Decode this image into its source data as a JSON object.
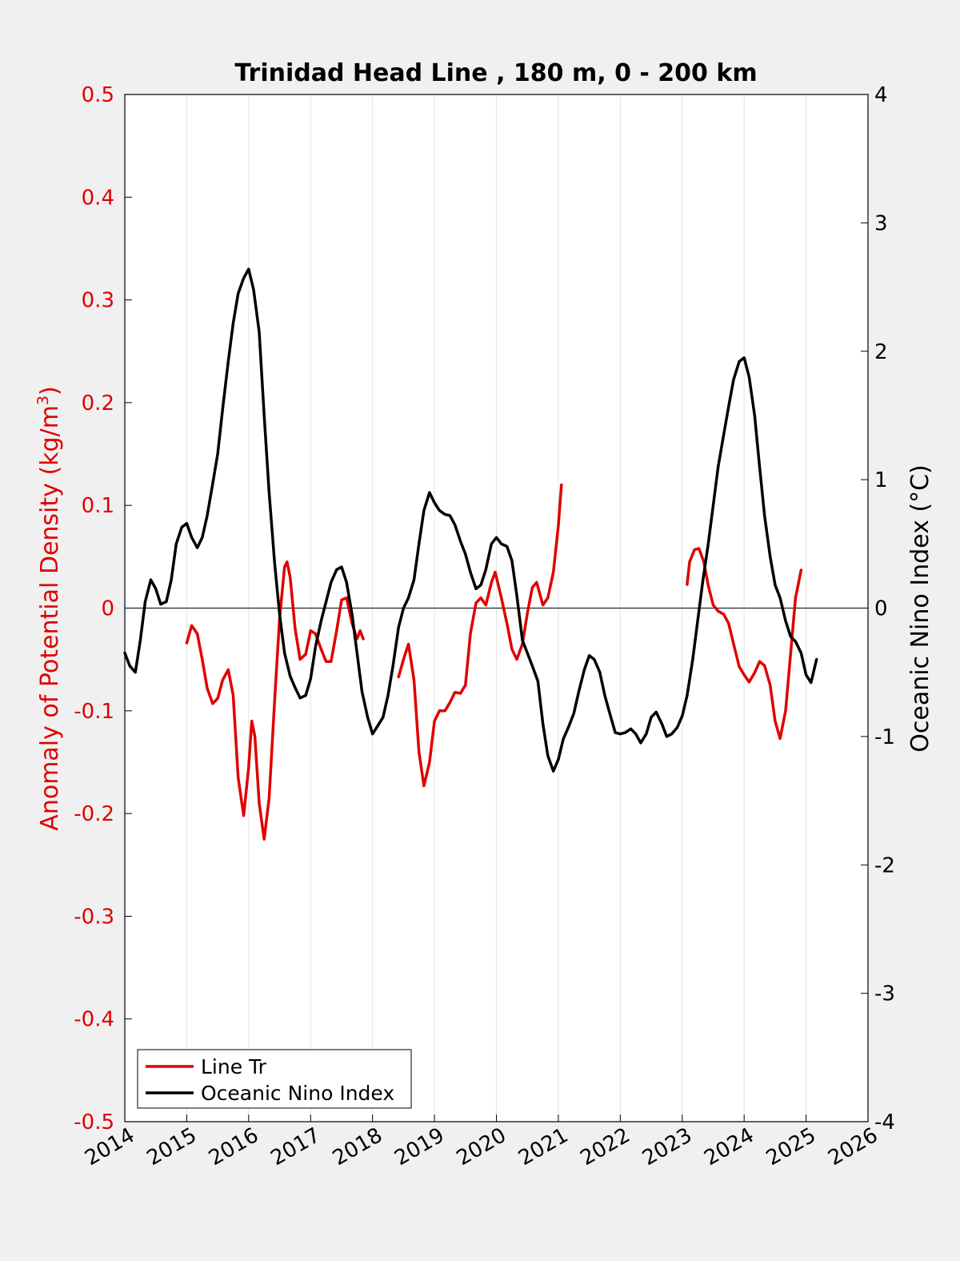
{
  "chart_data": {
    "type": "line",
    "title": "Trinidad Head Line , 180 m, 0 - 200 km",
    "ylabel_left_main": "Anomaly of Potential Density (kg/m",
    "ylabel_left_sup": "3",
    "ylabel_left_close": ")",
    "ylabel_right": "Oceanic Nino Index (°C)",
    "xlim": [
      2014,
      2026
    ],
    "ylim_left": [
      -0.5,
      0.5
    ],
    "ylim_right": [
      -4,
      4
    ],
    "x_ticks": [
      "2014",
      "2015",
      "2016",
      "2017",
      "2018",
      "2019",
      "2020",
      "2021",
      "2022",
      "2023",
      "2024",
      "2025",
      "2026"
    ],
    "y_left_ticks": [
      "0.5",
      "0.4",
      "0.3",
      "0.2",
      "0.1",
      "0",
      "-0.1",
      "-0.2",
      "-0.3",
      "-0.4",
      "-0.5"
    ],
    "y_right_ticks": [
      "4",
      "3",
      "2",
      "1",
      "0",
      "-1",
      "-2",
      "-3",
      "-4"
    ],
    "grid": "vertical",
    "zero_line": true,
    "legend_position": "bottom-left",
    "colors": {
      "line_tr": "#e00000",
      "oni": "#000000",
      "left_axis": "#e00000",
      "right_axis": "#000000"
    },
    "series": [
      {
        "name": "Line Tr",
        "axis": "left",
        "segments": [
          [
            [
              2015.0,
              -0.034
            ],
            [
              2015.08,
              -0.017
            ],
            [
              2015.17,
              -0.025
            ],
            [
              2015.25,
              -0.05
            ],
            [
              2015.33,
              -0.078
            ],
            [
              2015.42,
              -0.093
            ],
            [
              2015.5,
              -0.088
            ],
            [
              2015.58,
              -0.07
            ],
            [
              2015.67,
              -0.06
            ],
            [
              2015.75,
              -0.085
            ],
            [
              2015.83,
              -0.165
            ],
            [
              2015.92,
              -0.202
            ],
            [
              2016.0,
              -0.155
            ],
            [
              2016.05,
              -0.11
            ],
            [
              2016.1,
              -0.125
            ],
            [
              2016.17,
              -0.19
            ],
            [
              2016.25,
              -0.225
            ],
            [
              2016.33,
              -0.185
            ],
            [
              2016.42,
              -0.09
            ],
            [
              2016.5,
              -0.01
            ],
            [
              2016.58,
              0.04
            ],
            [
              2016.62,
              0.045
            ],
            [
              2016.67,
              0.03
            ],
            [
              2016.75,
              -0.02
            ],
            [
              2016.83,
              -0.05
            ],
            [
              2016.92,
              -0.045
            ],
            [
              2017.0,
              -0.022
            ],
            [
              2017.08,
              -0.025
            ],
            [
              2017.17,
              -0.04
            ],
            [
              2017.25,
              -0.052
            ],
            [
              2017.33,
              -0.052
            ],
            [
              2017.42,
              -0.022
            ],
            [
              2017.5,
              0.008
            ],
            [
              2017.58,
              0.01
            ],
            [
              2017.67,
              -0.015
            ],
            [
              2017.75,
              -0.03
            ],
            [
              2017.8,
              -0.022
            ],
            [
              2017.85,
              -0.03
            ]
          ],
          [
            [
              2018.42,
              -0.067
            ],
            [
              2018.5,
              -0.05
            ],
            [
              2018.58,
              -0.035
            ],
            [
              2018.67,
              -0.07
            ],
            [
              2018.75,
              -0.14
            ],
            [
              2018.83,
              -0.173
            ],
            [
              2018.92,
              -0.15
            ],
            [
              2019.0,
              -0.11
            ],
            [
              2019.08,
              -0.1
            ],
            [
              2019.17,
              -0.1
            ],
            [
              2019.25,
              -0.092
            ],
            [
              2019.33,
              -0.082
            ],
            [
              2019.42,
              -0.083
            ],
            [
              2019.5,
              -0.075
            ],
            [
              2019.58,
              -0.025
            ],
            [
              2019.67,
              0.005
            ],
            [
              2019.75,
              0.01
            ],
            [
              2019.83,
              0.003
            ],
            [
              2019.92,
              0.025
            ],
            [
              2019.98,
              0.035
            ],
            [
              2020.08,
              0.01
            ],
            [
              2020.17,
              -0.015
            ],
            [
              2020.25,
              -0.04
            ],
            [
              2020.33,
              -0.05
            ],
            [
              2020.42,
              -0.035
            ],
            [
              2020.5,
              -0.005
            ],
            [
              2020.58,
              0.02
            ],
            [
              2020.65,
              0.025
            ],
            [
              2020.75,
              0.003
            ],
            [
              2020.83,
              0.01
            ],
            [
              2020.92,
              0.035
            ],
            [
              2021.0,
              0.08
            ],
            [
              2021.05,
              0.12
            ]
          ],
          [
            [
              2023.08,
              0.023
            ],
            [
              2023.12,
              0.045
            ],
            [
              2023.2,
              0.057
            ],
            [
              2023.27,
              0.058
            ],
            [
              2023.35,
              0.045
            ],
            [
              2023.42,
              0.022
            ],
            [
              2023.5,
              0.003
            ],
            [
              2023.58,
              -0.003
            ],
            [
              2023.67,
              -0.006
            ],
            [
              2023.75,
              -0.015
            ],
            [
              2023.83,
              -0.035
            ],
            [
              2023.92,
              -0.057
            ],
            [
              2024.0,
              -0.065
            ],
            [
              2024.08,
              -0.072
            ],
            [
              2024.17,
              -0.063
            ],
            [
              2024.25,
              -0.052
            ],
            [
              2024.33,
              -0.056
            ],
            [
              2024.42,
              -0.075
            ],
            [
              2024.5,
              -0.11
            ],
            [
              2024.58,
              -0.127
            ],
            [
              2024.67,
              -0.1
            ],
            [
              2024.75,
              -0.045
            ],
            [
              2024.83,
              0.01
            ],
            [
              2024.92,
              0.037
            ]
          ]
        ]
      },
      {
        "name": "Oceanic Nino Index",
        "axis": "right",
        "segments": [
          [
            [
              2014.0,
              -0.35
            ],
            [
              2014.08,
              -0.45
            ],
            [
              2014.17,
              -0.5
            ],
            [
              2014.25,
              -0.25
            ],
            [
              2014.33,
              0.05
            ],
            [
              2014.42,
              0.22
            ],
            [
              2014.5,
              0.15
            ],
            [
              2014.58,
              0.03
            ],
            [
              2014.67,
              0.05
            ],
            [
              2014.75,
              0.22
            ],
            [
              2014.83,
              0.5
            ],
            [
              2014.92,
              0.63
            ],
            [
              2015.0,
              0.66
            ],
            [
              2015.08,
              0.55
            ],
            [
              2015.17,
              0.47
            ],
            [
              2015.25,
              0.55
            ],
            [
              2015.33,
              0.72
            ],
            [
              2015.42,
              0.97
            ],
            [
              2015.5,
              1.2
            ],
            [
              2015.58,
              1.55
            ],
            [
              2015.67,
              1.92
            ],
            [
              2015.75,
              2.22
            ],
            [
              2015.83,
              2.45
            ],
            [
              2015.92,
              2.57
            ],
            [
              2016.0,
              2.64
            ],
            [
              2016.08,
              2.48
            ],
            [
              2016.17,
              2.15
            ],
            [
              2016.25,
              1.5
            ],
            [
              2016.33,
              0.9
            ],
            [
              2016.42,
              0.35
            ],
            [
              2016.5,
              -0.05
            ],
            [
              2016.58,
              -0.35
            ],
            [
              2016.67,
              -0.53
            ],
            [
              2016.75,
              -0.62
            ],
            [
              2016.83,
              -0.7
            ],
            [
              2016.92,
              -0.68
            ],
            [
              2017.0,
              -0.55
            ],
            [
              2017.08,
              -0.3
            ],
            [
              2017.17,
              -0.1
            ],
            [
              2017.25,
              0.05
            ],
            [
              2017.33,
              0.2
            ],
            [
              2017.42,
              0.3
            ],
            [
              2017.5,
              0.32
            ],
            [
              2017.58,
              0.2
            ],
            [
              2017.67,
              -0.05
            ],
            [
              2017.75,
              -0.35
            ],
            [
              2017.83,
              -0.65
            ],
            [
              2017.92,
              -0.85
            ],
            [
              2018.0,
              -0.98
            ],
            [
              2018.08,
              -0.92
            ],
            [
              2018.17,
              -0.85
            ],
            [
              2018.25,
              -0.68
            ],
            [
              2018.33,
              -0.45
            ],
            [
              2018.42,
              -0.15
            ],
            [
              2018.5,
              0.0
            ],
            [
              2018.58,
              0.08
            ],
            [
              2018.67,
              0.22
            ],
            [
              2018.75,
              0.5
            ],
            [
              2018.83,
              0.76
            ],
            [
              2018.92,
              0.9
            ],
            [
              2019.0,
              0.82
            ],
            [
              2019.08,
              0.76
            ],
            [
              2019.17,
              0.73
            ],
            [
              2019.25,
              0.72
            ],
            [
              2019.33,
              0.65
            ],
            [
              2019.42,
              0.52
            ],
            [
              2019.5,
              0.42
            ],
            [
              2019.58,
              0.28
            ],
            [
              2019.67,
              0.15
            ],
            [
              2019.75,
              0.18
            ],
            [
              2019.83,
              0.3
            ],
            [
              2019.92,
              0.5
            ],
            [
              2020.0,
              0.55
            ],
            [
              2020.08,
              0.5
            ],
            [
              2020.17,
              0.48
            ],
            [
              2020.25,
              0.37
            ],
            [
              2020.33,
              0.1
            ],
            [
              2020.42,
              -0.25
            ],
            [
              2020.5,
              -0.35
            ],
            [
              2020.58,
              -0.45
            ],
            [
              2020.67,
              -0.57
            ],
            [
              2020.75,
              -0.9
            ],
            [
              2020.83,
              -1.15
            ],
            [
              2020.92,
              -1.27
            ],
            [
              2021.0,
              -1.18
            ],
            [
              2021.08,
              -1.02
            ],
            [
              2021.17,
              -0.92
            ],
            [
              2021.25,
              -0.82
            ],
            [
              2021.33,
              -0.65
            ],
            [
              2021.42,
              -0.48
            ],
            [
              2021.5,
              -0.37
            ],
            [
              2021.58,
              -0.4
            ],
            [
              2021.67,
              -0.5
            ],
            [
              2021.75,
              -0.68
            ],
            [
              2021.83,
              -0.82
            ],
            [
              2021.92,
              -0.97
            ],
            [
              2022.0,
              -0.98
            ],
            [
              2022.08,
              -0.97
            ],
            [
              2022.17,
              -0.94
            ],
            [
              2022.25,
              -0.98
            ],
            [
              2022.33,
              -1.05
            ],
            [
              2022.42,
              -0.98
            ],
            [
              2022.5,
              -0.85
            ],
            [
              2022.58,
              -0.81
            ],
            [
              2022.67,
              -0.9
            ],
            [
              2022.75,
              -1.0
            ],
            [
              2022.83,
              -0.98
            ],
            [
              2022.92,
              -0.93
            ],
            [
              2023.0,
              -0.84
            ],
            [
              2023.08,
              -0.68
            ],
            [
              2023.17,
              -0.4
            ],
            [
              2023.25,
              -0.1
            ],
            [
              2023.33,
              0.2
            ],
            [
              2023.42,
              0.5
            ],
            [
              2023.5,
              0.8
            ],
            [
              2023.58,
              1.1
            ],
            [
              2023.67,
              1.35
            ],
            [
              2023.75,
              1.57
            ],
            [
              2023.83,
              1.78
            ],
            [
              2023.92,
              1.92
            ],
            [
              2024.0,
              1.95
            ],
            [
              2024.08,
              1.8
            ],
            [
              2024.17,
              1.5
            ],
            [
              2024.25,
              1.1
            ],
            [
              2024.33,
              0.72
            ],
            [
              2024.42,
              0.4
            ],
            [
              2024.5,
              0.18
            ],
            [
              2024.58,
              0.08
            ],
            [
              2024.67,
              -0.1
            ],
            [
              2024.75,
              -0.22
            ],
            [
              2024.83,
              -0.26
            ],
            [
              2024.92,
              -0.35
            ],
            [
              2025.0,
              -0.52
            ],
            [
              2025.08,
              -0.58
            ],
            [
              2025.17,
              -0.4
            ]
          ]
        ]
      }
    ]
  }
}
